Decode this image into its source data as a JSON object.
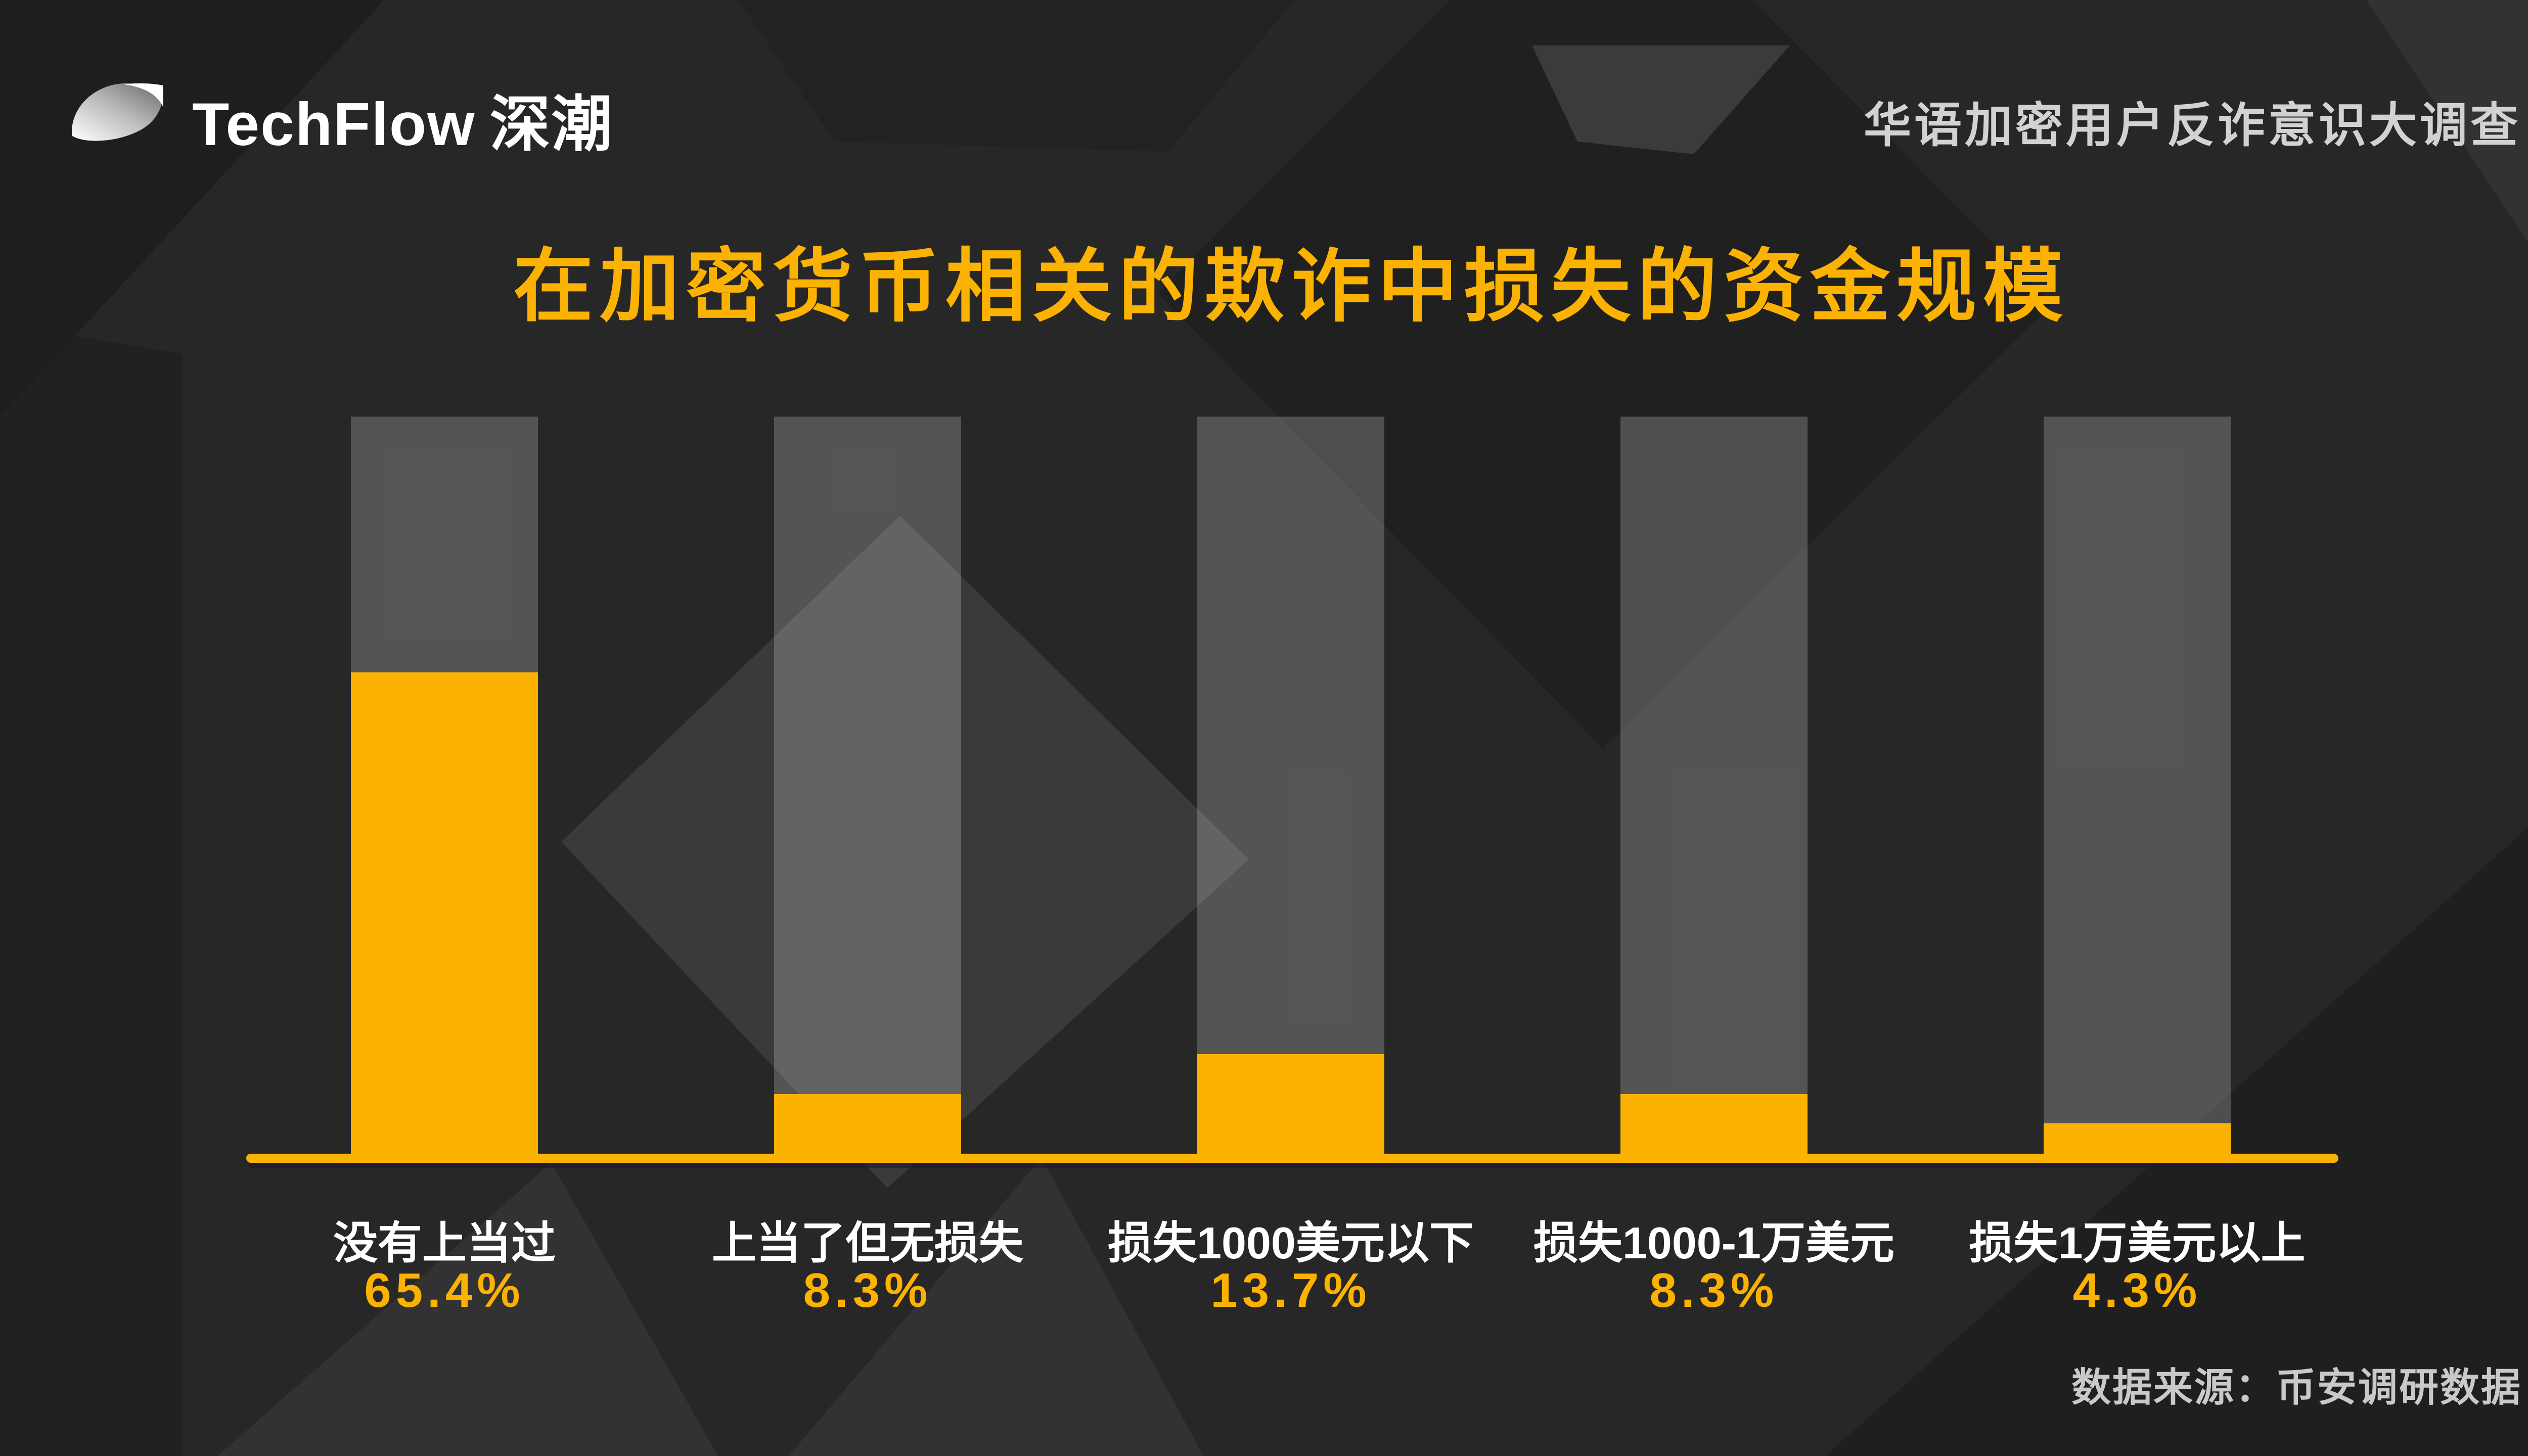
{
  "header": {
    "logo": {
      "brand": "TechFlow",
      "brand_cn": "深潮"
    },
    "event_title": "华语加密用户反诈意识大调查"
  },
  "title": "在加密货币相关的欺诈中损失的资金规模",
  "source": "数据来源：币安调研数据",
  "colors": {
    "accent_orange": "#FCB203",
    "bar_gray": "#58585A",
    "background": "#272727",
    "header_text": "#D2D2D2",
    "label_white": "#FFFFFF",
    "source_text": "#C9C9C9"
  },
  "chart_data": {
    "type": "bar",
    "title": "在加密货币相关的欺诈中损失的资金规模",
    "categories": [
      "没有上当过",
      "上当了但无损失",
      "损失1000美元以下",
      "损失1000-1万美元",
      "损失1万美元以上"
    ],
    "values": [
      65.4,
      8.3,
      13.7,
      8.3,
      4.3
    ],
    "value_labels": [
      "65.4%",
      "8.3%",
      "13.7%",
      "8.3%",
      "4.3%"
    ],
    "unit": "%",
    "ylim": [
      0,
      100
    ],
    "grid": false,
    "legend": false,
    "orientation": "vertical",
    "full_bar_represents": 100,
    "bar_track_color": "#58585A",
    "bar_value_color": "#FCB203"
  }
}
